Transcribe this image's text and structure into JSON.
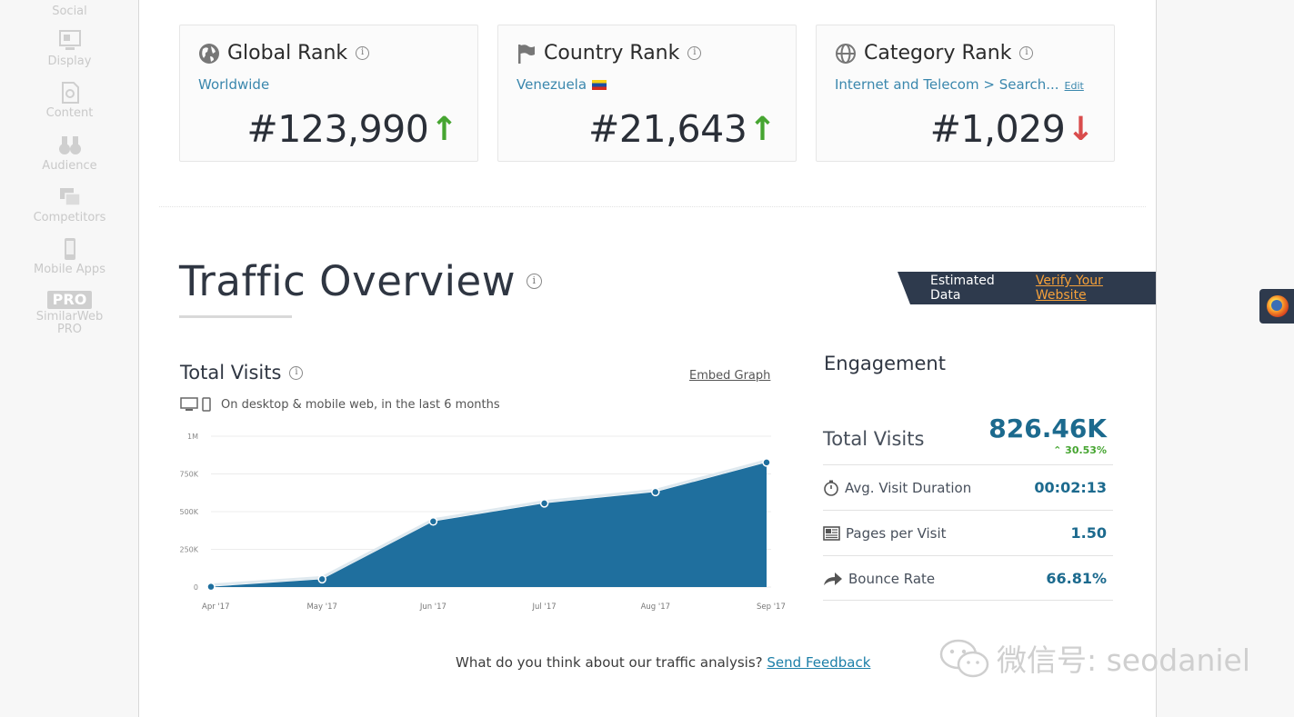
{
  "sidebar": {
    "items": [
      {
        "label": "Social",
        "icon": "social-icon"
      },
      {
        "label": "Display",
        "icon": "display-icon"
      },
      {
        "label": "Content",
        "icon": "content-icon"
      },
      {
        "label": "Audience",
        "icon": "binoculars-icon"
      },
      {
        "label": "Competitors",
        "icon": "competitors-icon"
      },
      {
        "label": "Mobile Apps",
        "icon": "mobile-icon"
      },
      {
        "badge": "PRO",
        "label_line1": "SimilarWeb",
        "label_line2": "PRO"
      }
    ]
  },
  "ranks": {
    "global": {
      "title": "Global Rank",
      "sub": "Worldwide",
      "value": "#123,990",
      "trend": "up"
    },
    "country": {
      "title": "Country Rank",
      "sub": "Venezuela",
      "value": "#21,643",
      "trend": "up"
    },
    "category": {
      "title": "Category Rank",
      "sub": "Internet and Telecom > Search...",
      "edit": "Edit",
      "value": "#1,029",
      "trend": "down"
    }
  },
  "traffic": {
    "title": "Traffic Overview",
    "estimated": "Estimated Data",
    "verify": "Verify Your Website"
  },
  "total_visits": {
    "title": "Total Visits",
    "embed": "Embed Graph",
    "subtitle": "On desktop & mobile web, in the last 6 months"
  },
  "chart_data": {
    "type": "area",
    "categories": [
      "Apr '17",
      "May '17",
      "Jun '17",
      "Jul '17",
      "Aug '17",
      "Sep '17"
    ],
    "values": [
      2000,
      52000,
      435000,
      555000,
      630000,
      826000
    ],
    "ytick_labels": [
      "0",
      "250K",
      "500K",
      "750K",
      "1M"
    ],
    "ytick_values": [
      0,
      250000,
      500000,
      750000,
      1000000
    ],
    "ylim": [
      0,
      1000000
    ],
    "color": "#1f6f9e",
    "grid": true
  },
  "engagement": {
    "title": "Engagement",
    "total_label": "Total Visits",
    "total_value": "826.46K",
    "total_change": "30.53%",
    "rows": [
      {
        "label": "Avg. Visit Duration",
        "value": "00:02:13",
        "icon": "stopwatch-icon"
      },
      {
        "label": "Pages per Visit",
        "value": "1.50",
        "icon": "pages-icon"
      },
      {
        "label": "Bounce Rate",
        "value": "66.81%",
        "icon": "bounce-arrow-icon"
      }
    ]
  },
  "feedback": {
    "question": "What do you think about our traffic analysis?",
    "link": "Send Feedback"
  },
  "watermark": {
    "text": "微信号: seodaniel"
  }
}
